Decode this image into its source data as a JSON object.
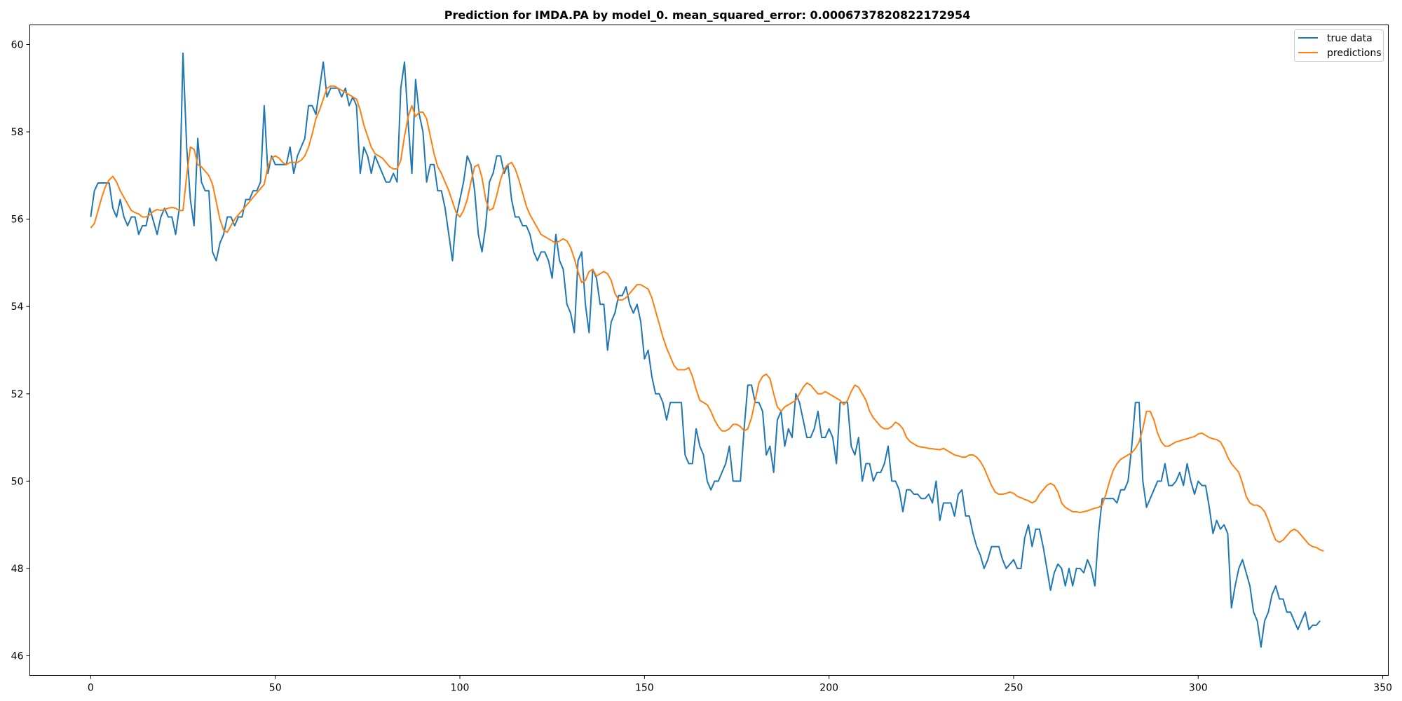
{
  "chart_data": {
    "type": "line",
    "title": "Prediction for IMDA.PA by model_0. mean_squared_error: 0.0006737820822172954",
    "xlabel": "",
    "ylabel": "",
    "xlim": [
      -16.5,
      351.5
    ],
    "ylim": [
      45.55,
      60.45
    ],
    "x_ticks": [
      0,
      50,
      100,
      150,
      200,
      250,
      300,
      350
    ],
    "y_ticks": [
      46,
      48,
      50,
      52,
      54,
      56,
      58,
      60
    ],
    "grid": false,
    "legend_position": "top-right",
    "colors": {
      "true_data": "#1f77b4",
      "predictions": "#ff7f0e"
    },
    "series": [
      {
        "name": "true data",
        "key": "true_data",
        "values": [
          56.05,
          56.65,
          56.83,
          56.83,
          56.83,
          56.83,
          56.25,
          56.05,
          56.45,
          56.05,
          55.85,
          56.05,
          56.05,
          55.65,
          55.85,
          55.85,
          56.25,
          55.95,
          55.65,
          56.05,
          56.25,
          56.05,
          56.05,
          55.65,
          56.25,
          59.8,
          57.65,
          56.45,
          55.85,
          57.85,
          56.85,
          56.65,
          56.65,
          55.25,
          55.05,
          55.45,
          55.65,
          56.05,
          56.05,
          55.85,
          56.05,
          56.05,
          56.45,
          56.45,
          56.65,
          56.65,
          56.85,
          58.6,
          57.05,
          57.45,
          57.25,
          57.25,
          57.25,
          57.25,
          57.65,
          57.05,
          57.45,
          57.65,
          57.85,
          58.6,
          58.6,
          58.4,
          59.0,
          59.6,
          58.8,
          59.0,
          59.0,
          59.0,
          58.8,
          59.0,
          58.6,
          58.8,
          58.6,
          57.05,
          57.65,
          57.45,
          57.05,
          57.45,
          57.25,
          57.05,
          56.85,
          56.85,
          57.05,
          56.85,
          59.0,
          59.6,
          58.2,
          57.05,
          59.2,
          58.4,
          58.0,
          56.85,
          57.25,
          57.25,
          56.65,
          56.65,
          56.25,
          55.65,
          55.05,
          56.05,
          56.45,
          56.85,
          57.45,
          57.25,
          56.65,
          55.65,
          55.25,
          55.85,
          56.85,
          57.05,
          57.45,
          57.45,
          57.05,
          57.25,
          56.45,
          56.05,
          56.05,
          55.85,
          55.85,
          55.65,
          55.25,
          55.05,
          55.25,
          55.25,
          55.05,
          54.65,
          55.65,
          55.05,
          54.85,
          54.05,
          53.85,
          53.4,
          55.05,
          55.25,
          54.05,
          53.4,
          54.85,
          54.65,
          54.05,
          54.05,
          53.0,
          53.65,
          53.85,
          54.25,
          54.25,
          54.45,
          54.05,
          53.85,
          54.05,
          53.65,
          52.8,
          53.0,
          52.4,
          52.0,
          52.0,
          51.8,
          51.4,
          51.8,
          51.8,
          51.8,
          51.8,
          50.6,
          50.4,
          50.4,
          51.2,
          50.8,
          50.6,
          50.0,
          49.8,
          50.0,
          50.0,
          50.2,
          50.4,
          50.8,
          50.0,
          50.0,
          50.0,
          51.2,
          52.2,
          52.2,
          51.8,
          51.8,
          51.6,
          50.6,
          50.8,
          50.2,
          51.4,
          51.6,
          50.8,
          51.2,
          51.0,
          52.0,
          51.8,
          51.4,
          51.0,
          51.0,
          51.2,
          51.6,
          51.0,
          51.0,
          51.2,
          51.0,
          50.4,
          51.8,
          51.8,
          51.8,
          50.8,
          50.6,
          51.0,
          50.0,
          50.4,
          50.4,
          50.0,
          50.2,
          50.2,
          50.4,
          50.8,
          50.0,
          50.0,
          49.8,
          49.3,
          49.8,
          49.8,
          49.7,
          49.7,
          49.6,
          49.6,
          49.7,
          49.5,
          50.0,
          49.1,
          49.5,
          49.5,
          49.5,
          49.2,
          49.7,
          49.8,
          49.2,
          49.2,
          48.8,
          48.5,
          48.3,
          48.0,
          48.2,
          48.5,
          48.5,
          48.5,
          48.2,
          48.0,
          48.1,
          48.2,
          48.0,
          48.0,
          48.7,
          49.0,
          48.5,
          48.9,
          48.9,
          48.5,
          48.0,
          47.5,
          47.9,
          48.1,
          48.0,
          47.6,
          48.0,
          47.6,
          48.0,
          48.0,
          47.9,
          48.2,
          48.0,
          47.6,
          48.8,
          49.6,
          49.6,
          49.6,
          49.6,
          49.5,
          49.8,
          49.8,
          50.0,
          50.8,
          51.8,
          51.8,
          50.0,
          49.4,
          49.6,
          49.8,
          50.0,
          50.0,
          50.4,
          49.9,
          49.9,
          50.0,
          50.2,
          49.9,
          50.4,
          50.0,
          49.7,
          50.0,
          49.9,
          49.9,
          49.4,
          48.8,
          49.1,
          48.9,
          49.0,
          48.8,
          47.1,
          47.6,
          48.0,
          48.2,
          47.9,
          47.6,
          47.0,
          46.8,
          46.2,
          46.8,
          47.0,
          47.4,
          47.6,
          47.3,
          47.3,
          47.0,
          47.0,
          46.8,
          46.6,
          46.8,
          47.0,
          46.6,
          46.7,
          46.7,
          46.8
        ]
      },
      {
        "name": "predictions",
        "key": "predictions",
        "values": [
          55.8,
          55.9,
          56.2,
          56.5,
          56.75,
          56.9,
          56.98,
          56.85,
          56.65,
          56.5,
          56.35,
          56.2,
          56.15,
          56.12,
          56.05,
          56.05,
          56.1,
          56.18,
          56.22,
          56.2,
          56.22,
          56.25,
          56.27,
          56.25,
          56.2,
          56.2,
          57.0,
          57.65,
          57.6,
          57.25,
          57.2,
          57.1,
          57.0,
          56.8,
          56.4,
          56.0,
          55.75,
          55.7,
          55.85,
          56.0,
          56.1,
          56.2,
          56.3,
          56.4,
          56.5,
          56.6,
          56.7,
          56.8,
          57.2,
          57.4,
          57.45,
          57.4,
          57.3,
          57.25,
          57.3,
          57.3,
          57.3,
          57.35,
          57.45,
          57.65,
          57.95,
          58.3,
          58.5,
          58.75,
          59.0,
          59.05,
          59.05,
          59.0,
          58.95,
          58.9,
          58.85,
          58.8,
          58.75,
          58.5,
          58.15,
          57.9,
          57.65,
          57.5,
          57.45,
          57.4,
          57.3,
          57.2,
          57.15,
          57.15,
          57.35,
          57.9,
          58.35,
          58.6,
          58.35,
          58.45,
          58.45,
          58.3,
          57.9,
          57.5,
          57.2,
          57.05,
          56.85,
          56.65,
          56.4,
          56.15,
          56.05,
          56.2,
          56.45,
          56.85,
          57.2,
          57.25,
          56.95,
          56.45,
          56.2,
          56.25,
          56.55,
          56.9,
          57.15,
          57.25,
          57.3,
          57.15,
          56.9,
          56.6,
          56.3,
          56.1,
          55.95,
          55.8,
          55.65,
          55.6,
          55.55,
          55.5,
          55.45,
          55.5,
          55.55,
          55.5,
          55.35,
          55.1,
          54.8,
          54.55,
          54.6,
          54.8,
          54.85,
          54.7,
          54.75,
          54.8,
          54.75,
          54.6,
          54.3,
          54.15,
          54.15,
          54.2,
          54.3,
          54.4,
          54.5,
          54.5,
          54.45,
          54.4,
          54.2,
          53.9,
          53.6,
          53.3,
          53.05,
          52.85,
          52.65,
          52.55,
          52.55,
          52.55,
          52.6,
          52.4,
          52.1,
          51.85,
          51.8,
          51.75,
          51.6,
          51.4,
          51.25,
          51.15,
          51.15,
          51.2,
          51.3,
          51.3,
          51.25,
          51.15,
          51.2,
          51.45,
          51.85,
          52.25,
          52.4,
          52.45,
          52.35,
          52.0,
          51.7,
          51.6,
          51.7,
          51.75,
          51.8,
          51.85,
          52.0,
          52.15,
          52.25,
          52.2,
          52.1,
          52.0,
          52.0,
          52.05,
          52.0,
          51.95,
          51.9,
          51.85,
          51.75,
          51.85,
          52.05,
          52.2,
          52.15,
          52.0,
          51.85,
          51.6,
          51.45,
          51.35,
          51.25,
          51.2,
          51.2,
          51.25,
          51.35,
          51.3,
          51.2,
          51.0,
          50.9,
          50.85,
          50.8,
          50.78,
          50.77,
          50.75,
          50.74,
          50.73,
          50.72,
          50.75,
          50.7,
          50.65,
          50.6,
          50.58,
          50.55,
          50.55,
          50.6,
          50.6,
          50.55,
          50.45,
          50.3,
          50.1,
          49.9,
          49.75,
          49.7,
          49.7,
          49.72,
          49.75,
          49.72,
          49.65,
          49.62,
          49.58,
          49.55,
          49.5,
          49.55,
          49.7,
          49.8,
          49.9,
          49.95,
          49.9,
          49.75,
          49.5,
          49.4,
          49.35,
          49.3,
          49.3,
          49.28,
          49.3,
          49.32,
          49.35,
          49.38,
          49.4,
          49.45,
          49.7,
          50.0,
          50.25,
          50.4,
          50.5,
          50.55,
          50.6,
          50.65,
          50.75,
          50.9,
          51.2,
          51.6,
          51.6,
          51.4,
          51.1,
          50.9,
          50.8,
          50.8,
          50.85,
          50.9,
          50.92,
          50.95,
          50.97,
          51.0,
          51.02,
          51.08,
          51.1,
          51.05,
          51.0,
          50.97,
          50.95,
          50.9,
          50.75,
          50.55,
          50.4,
          50.3,
          50.2,
          49.95,
          49.65,
          49.5,
          49.45,
          49.45,
          49.4,
          49.3,
          49.1,
          48.85,
          48.65,
          48.6,
          48.65,
          48.75,
          48.85,
          48.9,
          48.85,
          48.75,
          48.65,
          48.55,
          48.5,
          48.48,
          48.43,
          48.4
        ]
      }
    ]
  }
}
